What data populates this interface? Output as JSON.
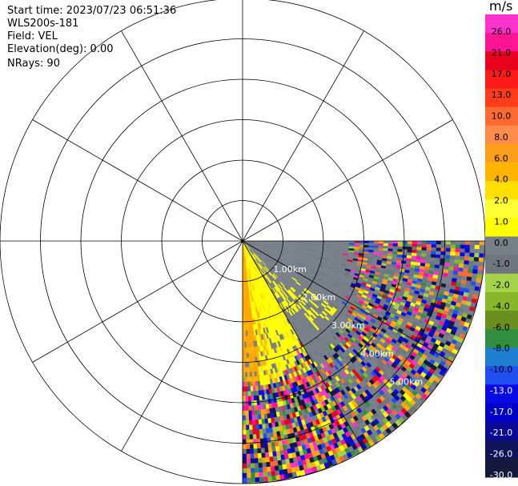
{
  "info": {
    "start_time": "Start time: 2023/07/23 06:51:36",
    "instrument": "WLS200s-181",
    "field": "Field: VEL",
    "elevation": "Elevation(deg): 0.00",
    "nrays": "NRays: 90"
  },
  "chart_data": {
    "type": "heatmap",
    "projection": "polar PPI",
    "field": "VEL",
    "units": "m/s",
    "sector_deg": [
      90,
      180
    ],
    "range_rings_km": [
      1,
      2,
      3,
      4,
      5,
      6
    ],
    "ring_labels": [
      "1.00km",
      "2.00km",
      "3.00km",
      "4.00km",
      "5.00km"
    ],
    "spokes_deg": [
      0,
      30,
      60,
      90,
      120,
      150,
      180,
      210,
      240,
      270,
      300,
      330
    ],
    "colorbar": {
      "title": "m/s",
      "ticks": [
        "26.0",
        "21.0",
        "17.0",
        "13.0",
        "10.0",
        "8.0",
        "6.0",
        "4.0",
        "2.0",
        "1.0",
        "0.0",
        "-1.0",
        "-2.0",
        "-4.0",
        "-6.0",
        "-8.0",
        "-10.0",
        "-13.0",
        "-17.0",
        "-21.0",
        "-26.0",
        "-30.0"
      ],
      "colors": [
        "#ff33cc",
        "#ff1493",
        "#e8001e",
        "#ff1a1a",
        "#ff3d1a",
        "#ff6a33",
        "#ff8c4a",
        "#ff9e1a",
        "#ffb400",
        "#ffde00",
        "#ffff33",
        "#ffff00",
        "#777f88",
        "#6e7680",
        "#a4d24a",
        "#88b82a",
        "#6a8f1e",
        "#2f8f3f",
        "#1e7fd0",
        "#1e4ff0",
        "#0a0ae6",
        "#0000c8",
        "#0a0a96",
        "#0f145a",
        "#141a3c"
      ]
    },
    "regions": [
      {
        "label": "near-range receding flow",
        "az_deg": [
          150,
          180
        ],
        "range_km": [
          0,
          3.2
        ],
        "value": 4.0
      },
      {
        "label": "near-range zero flow",
        "az_deg": [
          90,
          150
        ],
        "range_km": [
          0,
          3.0
        ],
        "value": 0.0
      },
      {
        "label": "far-range noise",
        "az_deg": [
          90,
          180
        ],
        "range_km": [
          3.0,
          6.0
        ],
        "value": "noise"
      }
    ]
  }
}
